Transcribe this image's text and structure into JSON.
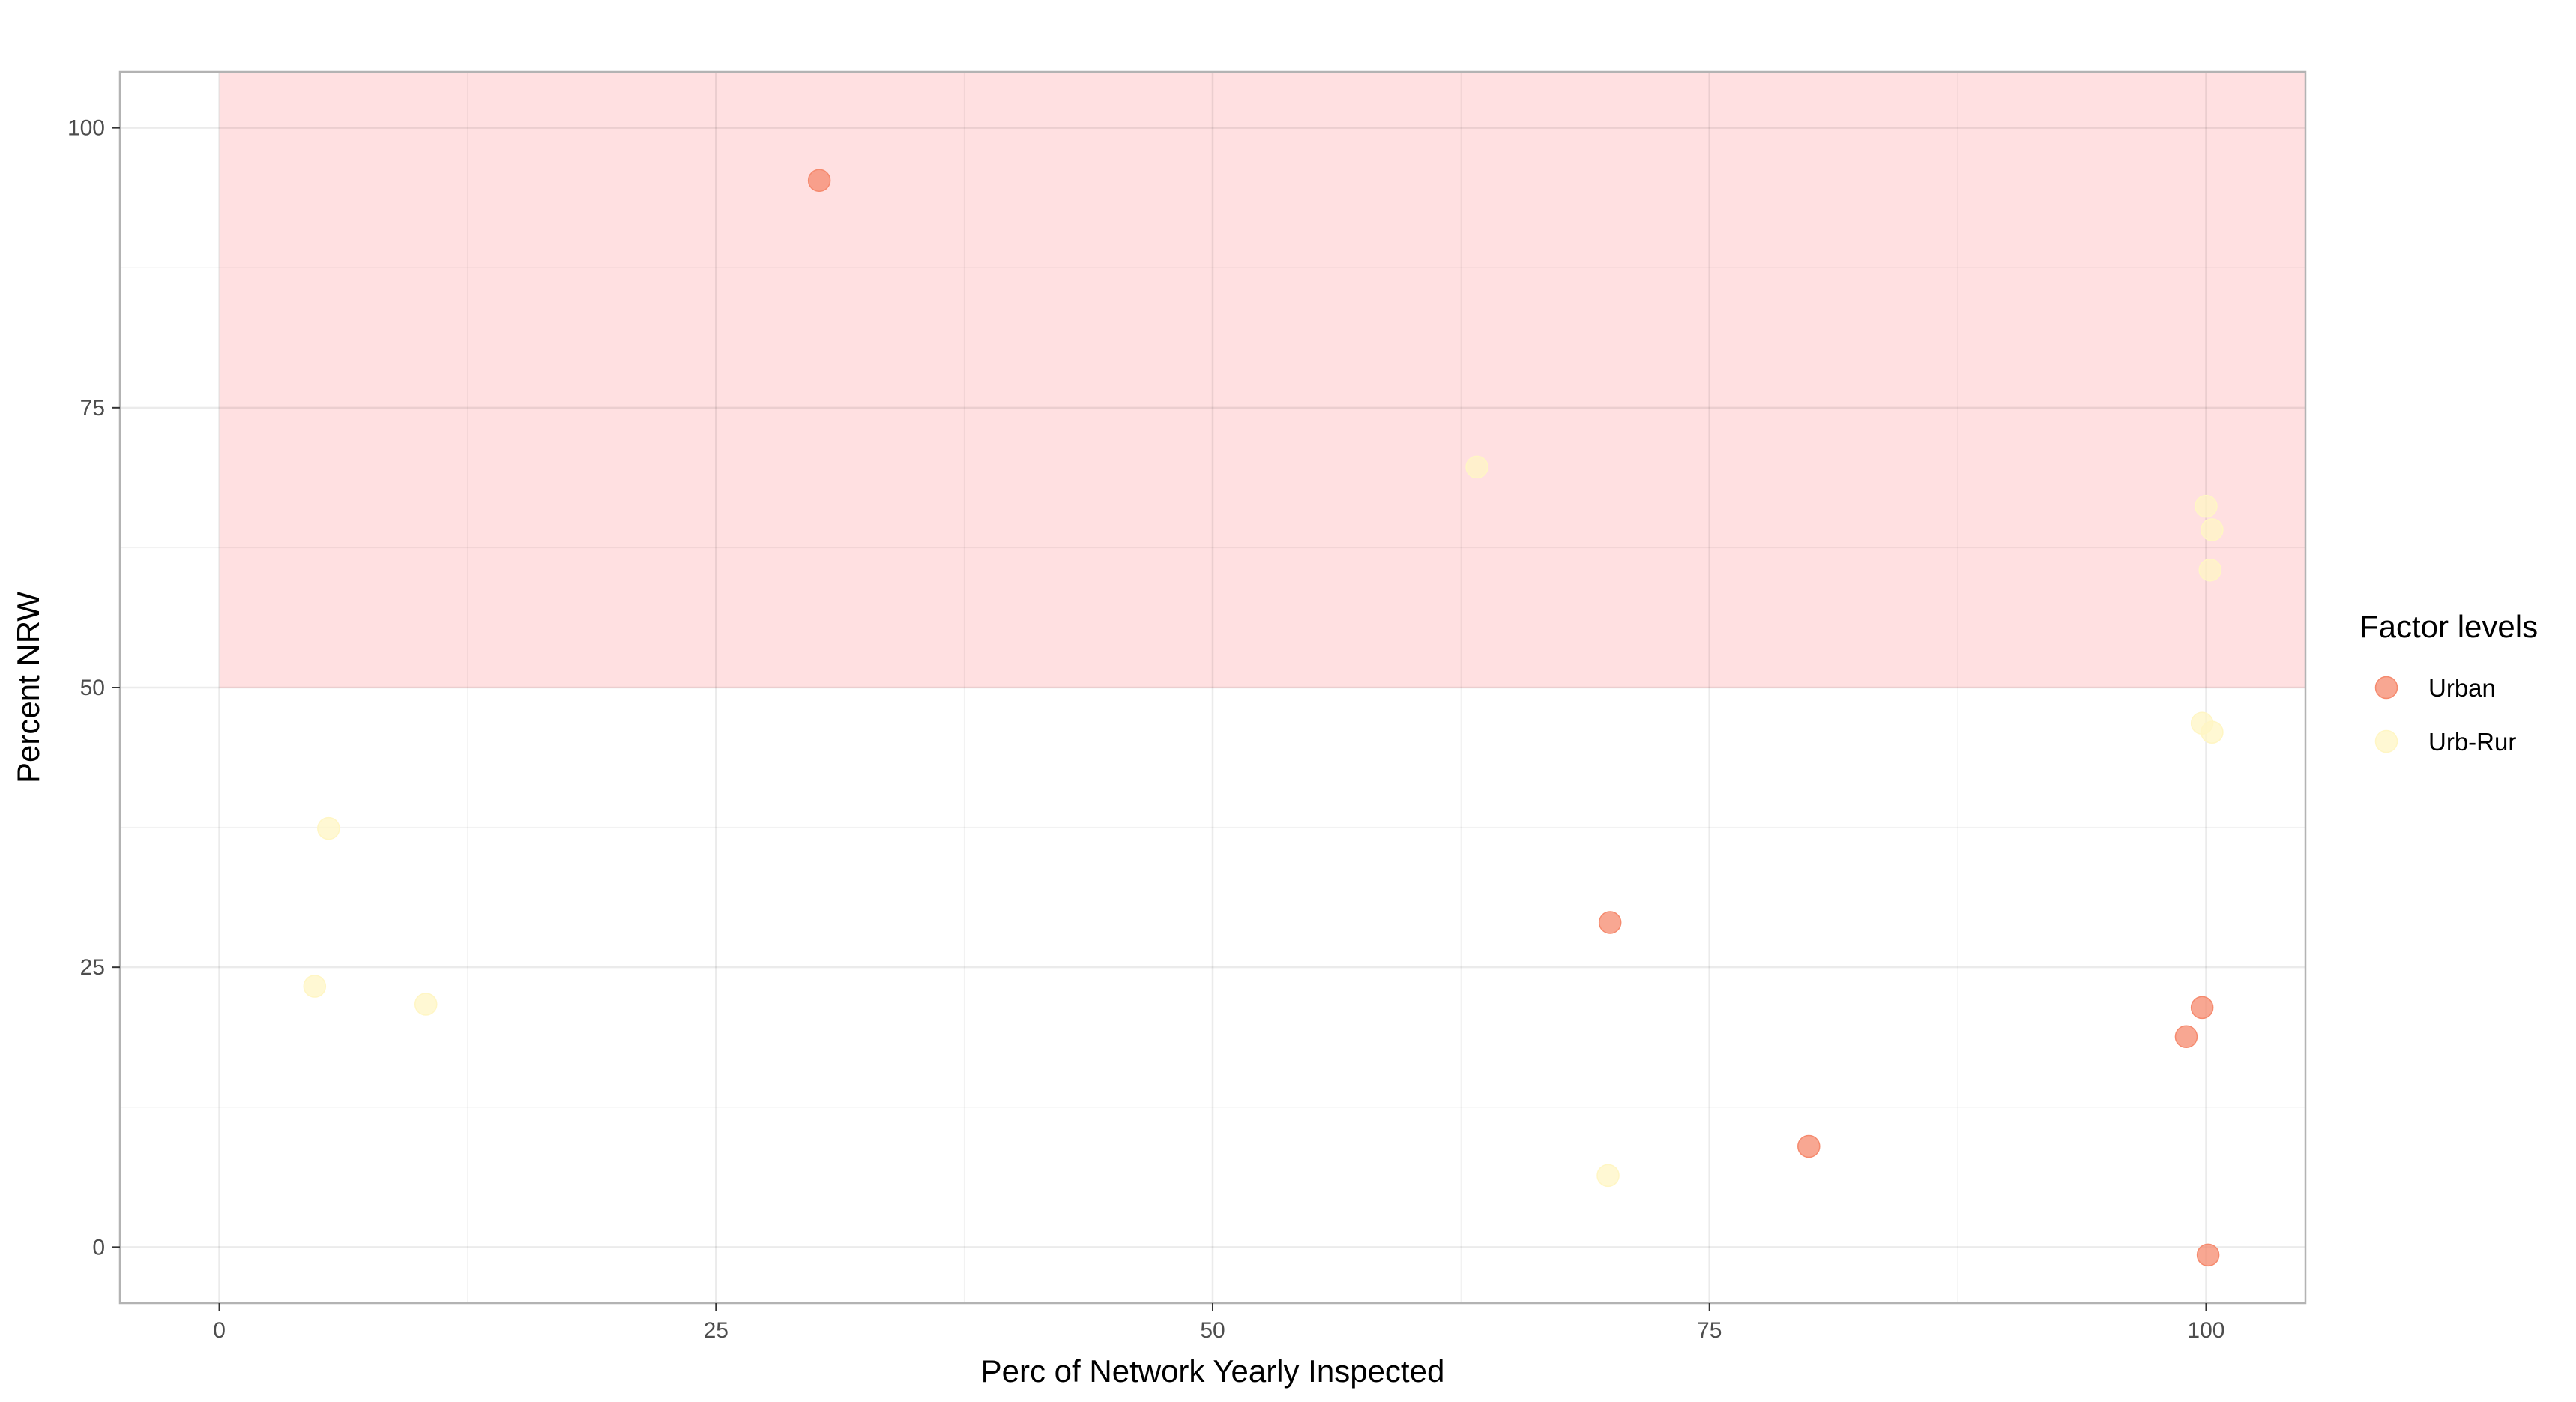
{
  "chart_data": {
    "type": "scatter",
    "title": "",
    "xlabel": "Perc of Network Yearly Inspected",
    "ylabel": "Percent NRW",
    "xlim": [
      -5,
      105
    ],
    "ylim": [
      -5,
      105
    ],
    "x_ticks": [
      0,
      25,
      50,
      75,
      100
    ],
    "y_ticks": [
      0,
      25,
      50,
      75,
      100
    ],
    "x_tick_labels": [
      "0",
      "25",
      "50",
      "75",
      "100"
    ],
    "y_tick_labels": [
      "0",
      "25",
      "50",
      "75",
      "100"
    ],
    "grid": true,
    "legend_position": "right",
    "legend_title": "Factor levels",
    "highlight_region": {
      "x": [
        0,
        105
      ],
      "y": [
        50,
        105
      ],
      "color": "#ffe0e1"
    },
    "series": [
      {
        "name": "Urban",
        "color": "#f58a6e",
        "points": [
          {
            "x": 30.2,
            "y": 95.3
          },
          {
            "x": 70.0,
            "y": 29.0
          },
          {
            "x": 80.0,
            "y": 9.0
          },
          {
            "x": 99.0,
            "y": 18.8
          },
          {
            "x": 99.8,
            "y": 21.4
          },
          {
            "x": 100.1,
            "y": -0.7
          }
        ]
      },
      {
        "name": "Urb-Rur",
        "color": "#fff6c4",
        "points": [
          {
            "x": 63.3,
            "y": 69.7
          },
          {
            "x": 100.0,
            "y": 66.2
          },
          {
            "x": 100.3,
            "y": 64.1
          },
          {
            "x": 100.2,
            "y": 60.5
          },
          {
            "x": 99.8,
            "y": 46.8
          },
          {
            "x": 100.3,
            "y": 46.0
          },
          {
            "x": 5.5,
            "y": 37.4
          },
          {
            "x": 4.8,
            "y": 23.3
          },
          {
            "x": 10.4,
            "y": 21.7
          },
          {
            "x": 69.9,
            "y": 6.4
          }
        ]
      }
    ]
  }
}
